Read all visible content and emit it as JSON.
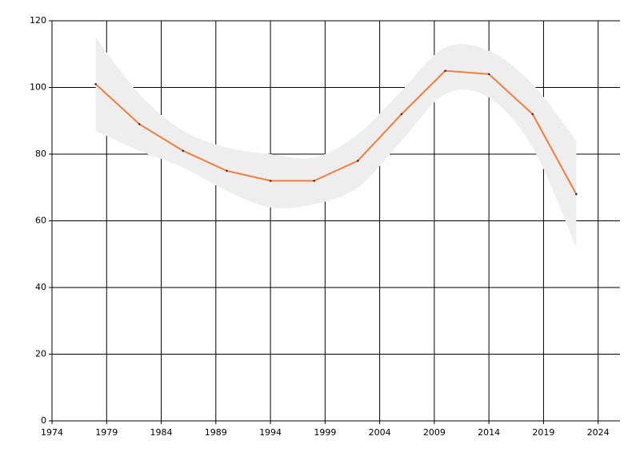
{
  "chart_data": {
    "type": "line",
    "x": [
      1978,
      1982,
      1986,
      1990,
      1994,
      1998,
      2002,
      2006,
      2010,
      2014,
      2018,
      2022
    ],
    "series": [
      {
        "color": "#f47c3c",
        "values": [
          101,
          89,
          81,
          75,
          72,
          72,
          78,
          92,
          105,
          104,
          92,
          68
        ],
        "upper": [
          115,
          98,
          87,
          82,
          80,
          79,
          86,
          99,
          112,
          111,
          101,
          84
        ],
        "lower": [
          87,
          81,
          76,
          69,
          64,
          65,
          70,
          84,
          98,
          97,
          82,
          52
        ],
        "band_color": "#eeeeee"
      }
    ],
    "xlim": [
      1974,
      2026
    ],
    "xticks": [
      1974,
      1979,
      1984,
      1989,
      1994,
      1999,
      2004,
      2009,
      2014,
      2019,
      2024
    ],
    "ylim": [
      0,
      120
    ],
    "yticks": [
      0,
      20,
      40,
      60,
      80,
      100,
      120
    ],
    "grid": true
  }
}
